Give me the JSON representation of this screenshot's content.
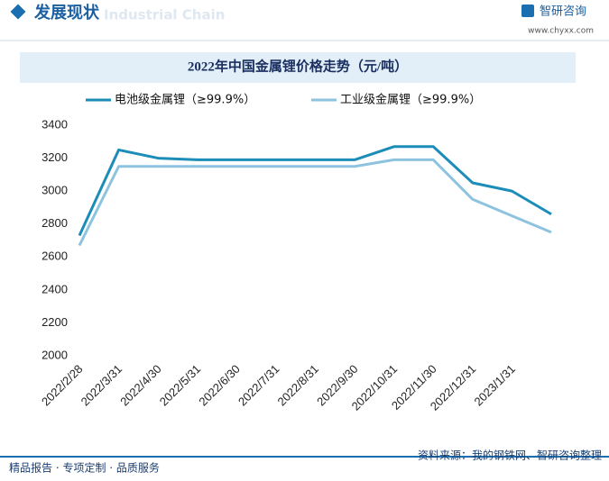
{
  "header": {
    "title": "发展现状",
    "watermark": "Industrial Chain",
    "logo": "智研咨询",
    "url": "www.chyxx.com"
  },
  "chart_data": {
    "type": "line",
    "title": "2022年中国金属锂价格走势（元/吨）",
    "categories": [
      "2022/2/28",
      "2022/3/31",
      "2022/4/30",
      "2022/5/31",
      "2022/6/30",
      "2022/7/31",
      "2022/8/31",
      "2022/9/30",
      "2022/10/31",
      "2022/11/30",
      "2022/12/31",
      "2023/1/31",
      null
    ],
    "series": [
      {
        "name": "电池级金属锂（≥99.9%）",
        "color": "#1b8db8",
        "values": [
          2730,
          3250,
          3200,
          3190,
          3190,
          3190,
          3190,
          3190,
          3270,
          3270,
          3050,
          3000,
          2860
        ]
      },
      {
        "name": "工业级金属锂（≥99.9%）",
        "color": "#8ec3e0",
        "values": [
          2670,
          3150,
          3150,
          3150,
          3150,
          3150,
          3150,
          3150,
          3190,
          3190,
          2950,
          2850,
          2750
        ]
      }
    ],
    "ylim": [
      2000,
      3400
    ],
    "yticks": [
      2000,
      2200,
      2400,
      2600,
      2800,
      3000,
      3200,
      3400
    ],
    "grid": false,
    "legend": "top"
  },
  "footer": {
    "slogan": "精品报告 · 专项定制 · 品质服务",
    "source": "资料来源：我的钢铁网、智研咨询整理"
  }
}
